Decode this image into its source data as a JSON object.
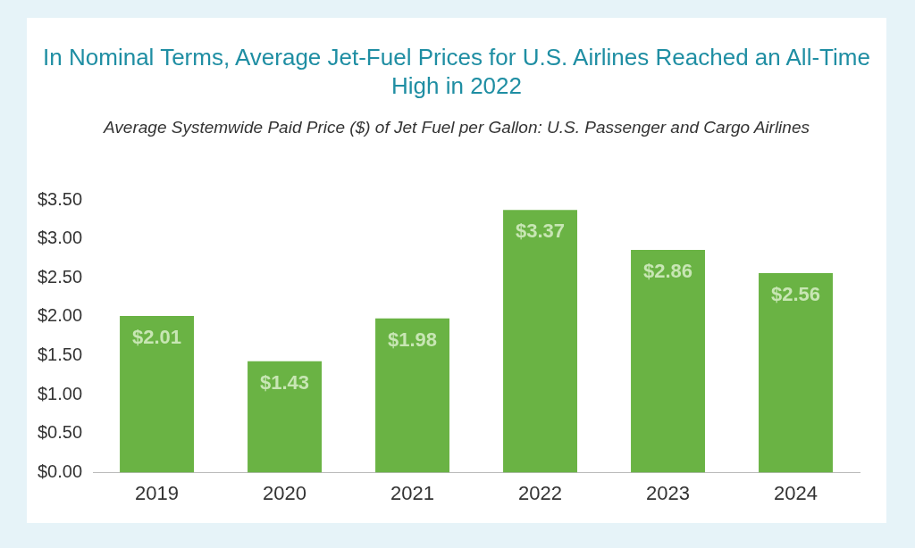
{
  "chart_data": {
    "type": "bar",
    "title": "In Nominal Terms, Average Jet-Fuel Prices for U.S. Airlines Reached an All-Time High in 2022",
    "subtitle": "Average Systemwide Paid Price ($) of Jet Fuel per Gallon: U.S. Passenger and Cargo Airlines",
    "categories": [
      "2019",
      "2020",
      "2021",
      "2022",
      "2023",
      "2024"
    ],
    "values": [
      2.01,
      1.43,
      1.98,
      3.37,
      2.86,
      2.56
    ],
    "color": "#6ab344",
    "ylim": [
      0,
      3.5
    ],
    "yticks": [
      {
        "value": 0,
        "label": "$0.00"
      },
      {
        "value": 0.5,
        "label": "$0.50"
      },
      {
        "value": 1,
        "label": "$1.00"
      },
      {
        "value": 1.5,
        "label": "$1.50"
      },
      {
        "value": 2,
        "label": "$2.00"
      },
      {
        "value": 2.5,
        "label": "$2.50"
      },
      {
        "value": 3,
        "label": "$3.00"
      },
      {
        "value": 3.5,
        "label": "$3.50"
      }
    ],
    "value_labels": [
      "$2.01",
      "$1.43",
      "$1.98",
      "$3.37",
      "$2.86",
      "$2.56"
    ],
    "grid": false,
    "legend": false
  }
}
